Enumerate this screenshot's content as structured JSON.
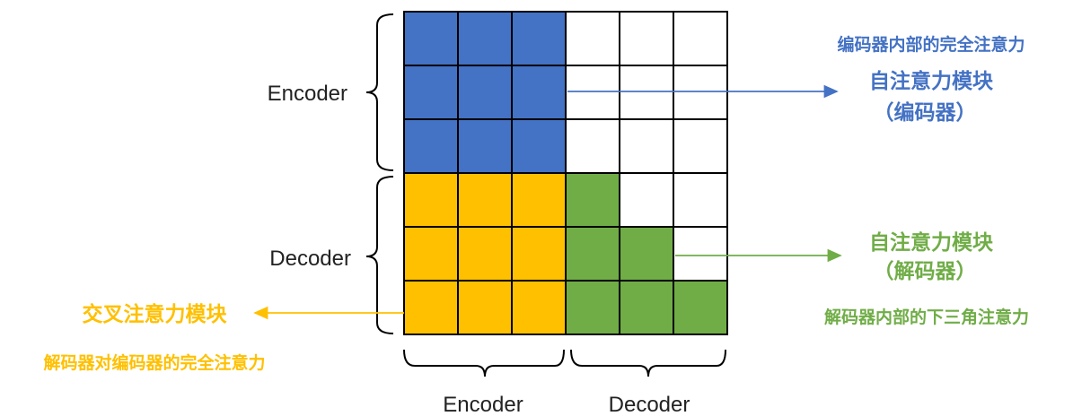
{
  "grid": {
    "rows": 6,
    "cols": 6,
    "cells": [
      [
        "blue",
        "blue",
        "blue",
        "white",
        "white",
        "white"
      ],
      [
        "blue",
        "blue",
        "blue",
        "white",
        "white",
        "white"
      ],
      [
        "blue",
        "blue",
        "blue",
        "white",
        "white",
        "white"
      ],
      [
        "yellow",
        "yellow",
        "yellow",
        "green",
        "white",
        "white"
      ],
      [
        "yellow",
        "yellow",
        "yellow",
        "green",
        "green",
        "white"
      ],
      [
        "yellow",
        "yellow",
        "yellow",
        "green",
        "green",
        "green"
      ]
    ]
  },
  "colors": {
    "blue": "#4472C4",
    "yellow": "#FFC000",
    "green": "#70AD47",
    "white": "#FFFFFF",
    "grid_line": "#000000",
    "label_blue": "#4472C4",
    "label_green": "#70AD47",
    "label_yellow": "#FFC000",
    "axis_text": "#222222"
  },
  "axis_labels": {
    "left_top": "Encoder",
    "left_bottom": "Decoder",
    "bottom_left": "Encoder",
    "bottom_right": "Decoder"
  },
  "annotations": {
    "encoder_self": {
      "caption": "编码器内部的完全注意力",
      "title_line1": "自注意力模块",
      "title_line2": "（编码器）"
    },
    "decoder_self": {
      "title_line1": "自注意力模块",
      "title_line2": "（解码器）",
      "caption": "解码器内部的下三角注意力"
    },
    "cross": {
      "title": "交叉注意力模块",
      "caption": "解码器对编码器的完全注意力"
    }
  }
}
